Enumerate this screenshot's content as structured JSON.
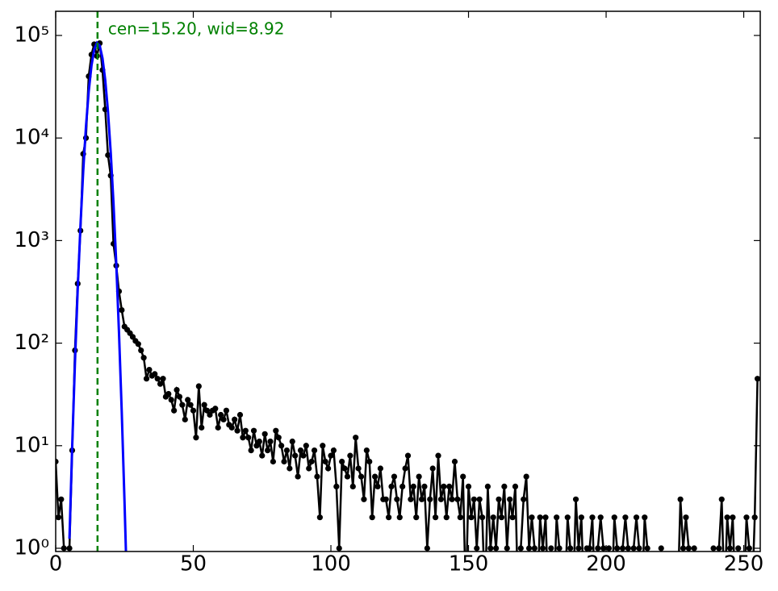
{
  "chart_data": {
    "type": "line",
    "annotation": "cen=15.20, wid=8.92",
    "annotation_color": "#008000",
    "vline": 15.2,
    "vline_color": "#008000",
    "xlim": [
      0,
      256
    ],
    "xticks": [
      0,
      50,
      100,
      150,
      200,
      250
    ],
    "yscale": "log",
    "ylim": [
      0.93,
      172000
    ],
    "yticks": [
      {
        "value": 1,
        "label": "10⁰"
      },
      {
        "value": 10,
        "label": "10¹"
      },
      {
        "value": 100,
        "label": "10²"
      },
      {
        "value": 1000,
        "label": "10³"
      },
      {
        "value": 10000,
        "label": "10⁴"
      },
      {
        "value": 100000,
        "label": "10⁵"
      }
    ],
    "series": [
      {
        "color": "#000000",
        "markers": true,
        "x": [
          0,
          1,
          2,
          3,
          4,
          5,
          6,
          7,
          8,
          9,
          10,
          11,
          12,
          13,
          14,
          15,
          16,
          17,
          18,
          19,
          20,
          21,
          22,
          23,
          24,
          25,
          26,
          27,
          28,
          29,
          30,
          31,
          32,
          33,
          34,
          35,
          36,
          37,
          38,
          39,
          40,
          41,
          42,
          43,
          44,
          45,
          46,
          47,
          48,
          49,
          50,
          51,
          52,
          53,
          54,
          55,
          56,
          57,
          58,
          59,
          60,
          61,
          62,
          63,
          64,
          65,
          66,
          67,
          68,
          69,
          70,
          71,
          72,
          73,
          74,
          75,
          76,
          77,
          78,
          79,
          80,
          81,
          82,
          83,
          84,
          85,
          86,
          87,
          88,
          89,
          90,
          91,
          92,
          93,
          94,
          95,
          96,
          97,
          98,
          99,
          100,
          101,
          102,
          103,
          104,
          105,
          106,
          107,
          108,
          109,
          110,
          111,
          112,
          113,
          114,
          115,
          116,
          117,
          118,
          119,
          120,
          121,
          122,
          123,
          124,
          125,
          126,
          127,
          128,
          129,
          130,
          131,
          132,
          133,
          134,
          135,
          136,
          137,
          138,
          139,
          140,
          141,
          142,
          143,
          144,
          145,
          146,
          147,
          148,
          149,
          150,
          151,
          152,
          153,
          154,
          155,
          156,
          157,
          158,
          159,
          160,
          161,
          162,
          163,
          164,
          165,
          166,
          167,
          168,
          169,
          170,
          171,
          172,
          173,
          174,
          175,
          176,
          177,
          178,
          179,
          180,
          181,
          182,
          183,
          184,
          185,
          186,
          187,
          188,
          189,
          190,
          191,
          192,
          193,
          194,
          195,
          196,
          197,
          198,
          199,
          200,
          201,
          202,
          203,
          204,
          205,
          206,
          207,
          208,
          209,
          210,
          211,
          212,
          213,
          214,
          215,
          216,
          217,
          218,
          219,
          220,
          221,
          222,
          223,
          224,
          225,
          226,
          227,
          228,
          229,
          230,
          231,
          232,
          233,
          234,
          235,
          236,
          237,
          238,
          239,
          240,
          241,
          242,
          243,
          244,
          245,
          246,
          247,
          248,
          249,
          250,
          251,
          252,
          253,
          254,
          255
        ],
        "values": [
          7,
          2,
          3,
          1,
          0,
          1,
          9,
          85,
          380,
          1250,
          7000,
          10000,
          40000,
          65000,
          82000,
          63000,
          84000,
          46000,
          19000,
          6800,
          4300,
          930,
          570,
          320,
          210,
          145,
          135,
          125,
          115,
          105,
          98,
          85,
          72,
          45,
          55,
          48,
          50,
          45,
          40,
          45,
          30,
          32,
          28,
          22,
          35,
          30,
          25,
          18,
          28,
          25,
          22,
          12,
          38,
          15,
          25,
          22,
          20,
          22,
          23,
          15,
          20,
          18,
          22,
          16,
          15,
          18,
          14,
          20,
          12,
          14,
          12,
          9,
          14,
          10,
          11,
          8,
          13,
          9,
          11,
          7,
          14,
          12,
          10,
          7,
          9,
          6,
          11,
          8,
          5,
          9,
          8,
          10,
          6,
          7,
          9,
          5,
          2,
          10,
          7,
          6,
          8,
          9,
          4,
          1,
          7,
          6,
          5,
          8,
          4,
          12,
          6,
          5,
          3,
          9,
          7,
          2,
          5,
          4,
          6,
          3,
          3,
          2,
          4,
          5,
          3,
          2,
          4,
          6,
          8,
          3,
          4,
          2,
          5,
          3,
          4,
          1,
          3,
          6,
          2,
          8,
          3,
          4,
          2,
          4,
          3,
          7,
          3,
          2,
          5,
          0,
          4,
          2,
          3,
          1,
          3,
          2,
          0,
          4,
          1,
          2,
          1,
          3,
          2,
          4,
          1,
          3,
          2,
          4,
          0,
          1,
          3,
          5,
          1,
          2,
          1,
          0,
          2,
          1,
          2,
          0,
          1,
          0,
          2,
          1,
          0,
          0,
          2,
          1,
          0,
          3,
          1,
          2,
          0,
          1,
          1,
          2,
          0,
          1,
          2,
          1,
          0,
          1,
          0,
          2,
          1,
          0,
          1,
          2,
          1,
          0,
          1,
          2,
          1,
          0,
          2,
          1,
          0,
          0,
          0,
          0,
          1,
          0,
          0,
          0,
          0,
          0,
          0,
          3,
          1,
          2,
          1,
          0,
          1,
          0,
          0,
          0,
          0,
          0,
          0,
          1,
          0,
          1,
          3,
          0,
          2,
          1,
          2,
          0,
          1,
          0,
          0,
          2,
          1,
          0,
          2,
          45
        ]
      },
      {
        "color": "#0000ff",
        "markers": false,
        "x": [
          5,
          6,
          7,
          8,
          9,
          10,
          11,
          12,
          13,
          14,
          15,
          16,
          17,
          18,
          19,
          20,
          21,
          22,
          23,
          24,
          25,
          26
        ],
        "values": [
          1.24,
          9.9,
          64,
          333,
          1394,
          4716,
          12880,
          28430,
          50660,
          72850,
          84640,
          79380,
          60100,
          36750,
          18150,
          7230,
          2326,
          604,
          127,
          21.5,
          2.9,
          0.33
        ]
      }
    ]
  }
}
